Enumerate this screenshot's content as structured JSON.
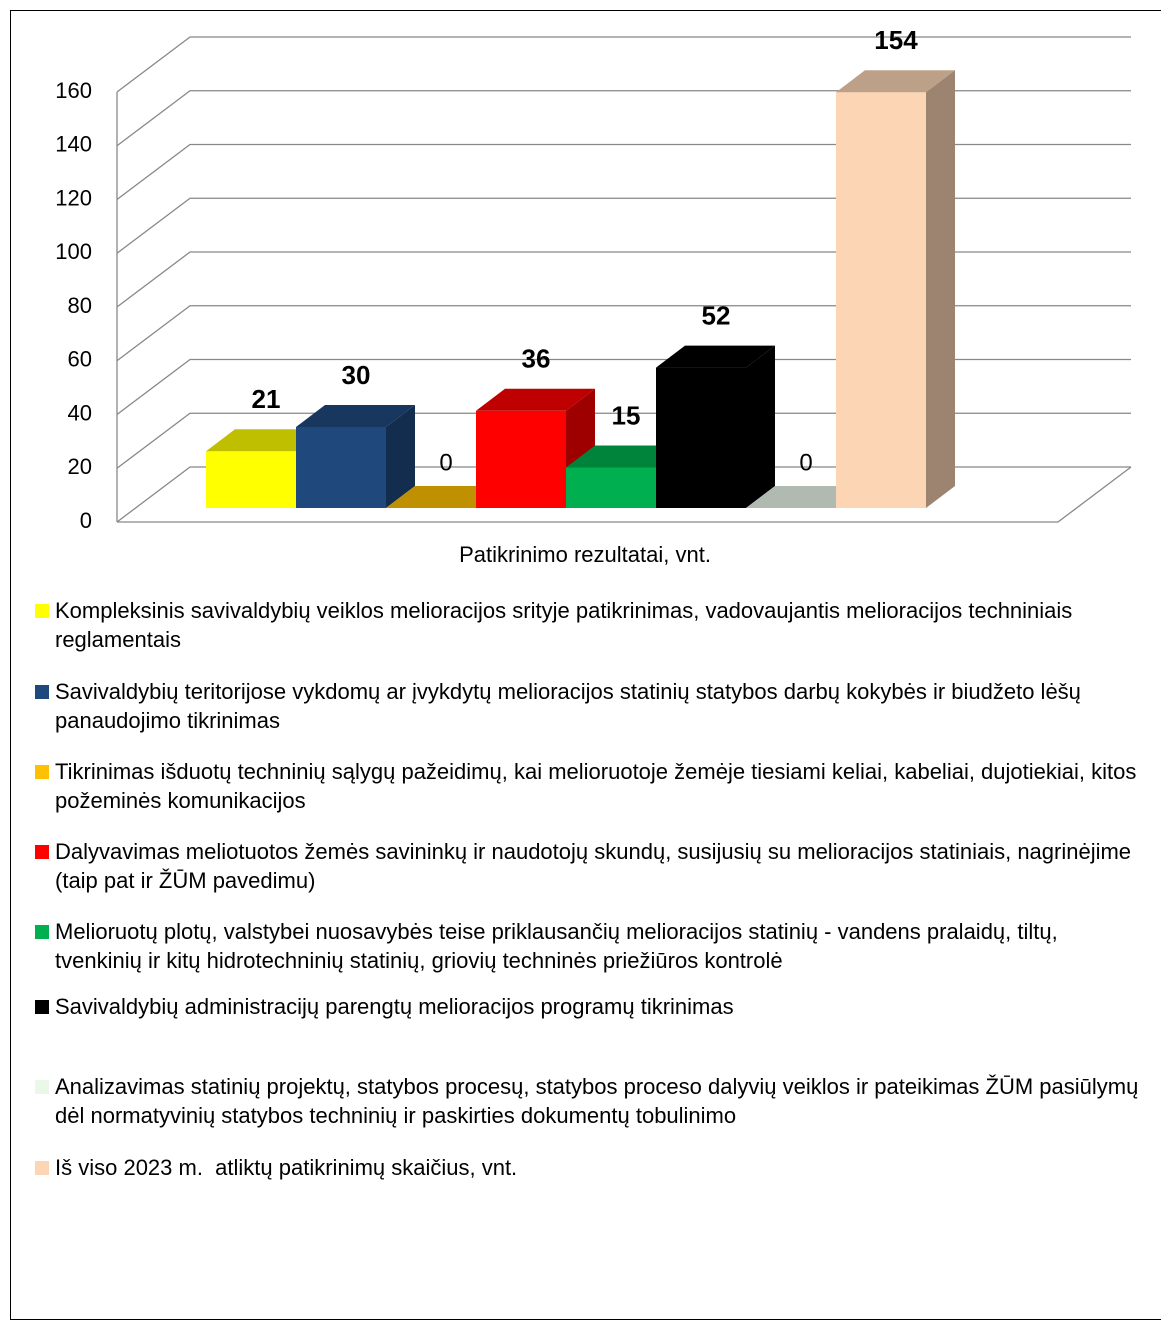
{
  "chart_data": {
    "type": "bar3d",
    "x_label": "Patikrinimo rezultatai, vnt.",
    "ylim": [
      0,
      160
    ],
    "yticks": [
      0,
      20,
      40,
      60,
      80,
      100,
      120,
      140,
      160
    ],
    "grid": true,
    "series": [
      {
        "name": "Kompleksinis savivaldybių veiklos melioracijos srityje patikrinimas, vadovaujantis melioracijos techniniais reglamentais",
        "color": "#ffff00",
        "values": [
          21
        ]
      },
      {
        "name": "Savivaldybių teritorijose vykdomų ar įvykdytų melioracijos statinių statybos darbų kokybės ir biudžeto lėšų panaudojimo tikrinimas",
        "color": "#1f497d",
        "values": [
          30
        ]
      },
      {
        "name": "Tikrinimas išduotų techninių sąlygų pažeidimų, kai melioruotoje žemėje tiesiami keliai, kabeliai, dujotiekiai, kitos požeminės komunikacijos",
        "color": "#ffc000",
        "values": [
          0
        ]
      },
      {
        "name": "Dalyvavimas meliotuotos žemės savininkų ir naudotojų skundų, susijusių su melioracijos statiniais, nagrinėjime (taip pat ir ŽŪM pavedimu)",
        "color": "#ff0000",
        "values": [
          36
        ]
      },
      {
        "name": "Melioruotų plotų, valstybei nuosavybės teise priklausančių melioracijos statinių - vandens pralaidų, tiltų, tvenkinių ir kitų hidrotechninių statinių, griovių techninės priežiūros kontrolė",
        "color": "#00b050",
        "values": [
          15
        ]
      },
      {
        "name": "Savivaldybių administracijų parengtų melioracijos programų tikrinimas",
        "color": "#000000",
        "values": [
          52
        ]
      },
      {
        "name": "Analizavimas statinių projektų, statybos procesų, statybos proceso dalyvių veiklos ir pateikimas ŽŪM pasiūlymų dėl normatyvinių statybos techninių ir paskirties dokumentų tobulinimo",
        "color": "#eaf8ea",
        "values": [
          0
        ]
      },
      {
        "name": "Iš viso 2023 m.  atliktų patikrinimų skaičius, vnt.",
        "color": "#fcd5b5",
        "values": [
          154
        ]
      }
    ]
  }
}
